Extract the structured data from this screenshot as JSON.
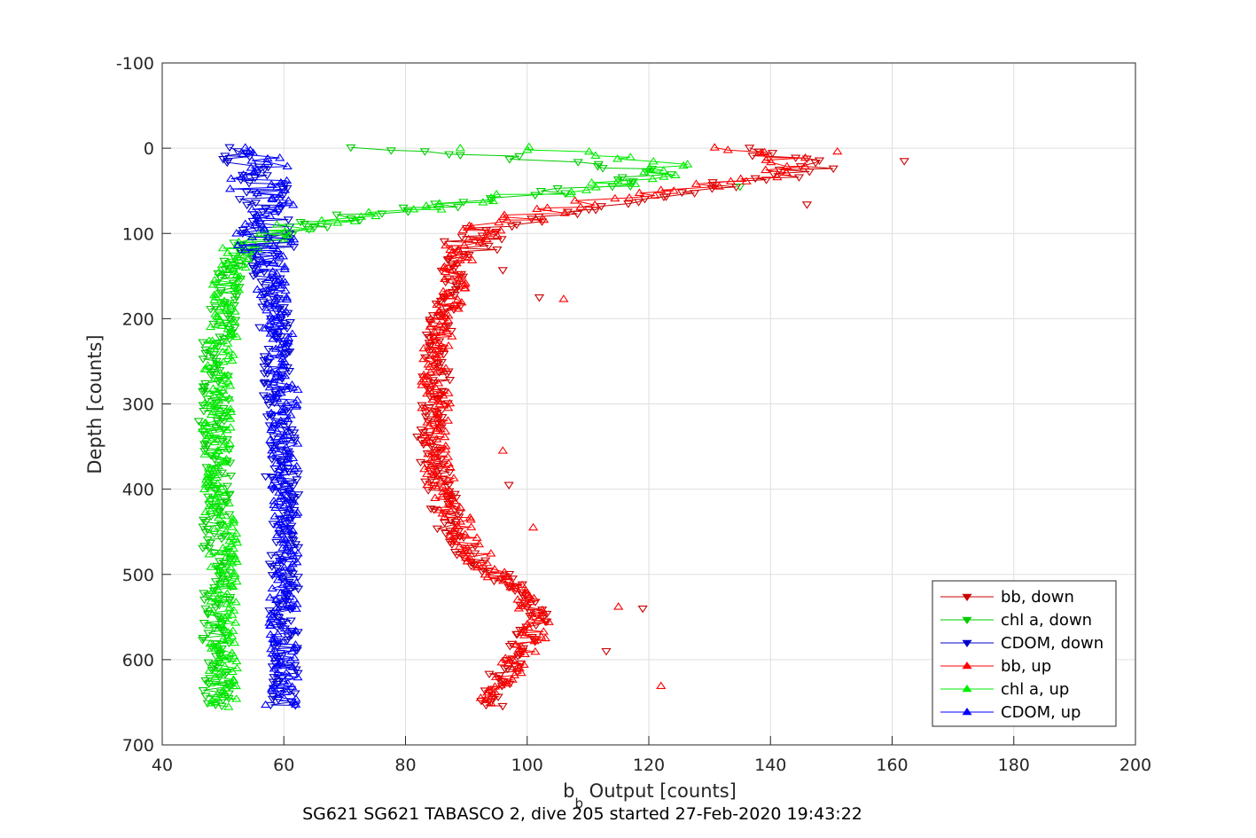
{
  "chart_data": {
    "type": "scatter",
    "title": "",
    "footer": "SG621 SG621 TABASCO 2, dive 205 started 27-Feb-2020 19:43:22",
    "xlabel_base": "b",
    "xlabel_sub": "b",
    "xlabel_rest": " Output [counts]",
    "ylabel": "Depth [counts]",
    "xlim": [
      40,
      200
    ],
    "ylim": [
      -100,
      700
    ],
    "y_reversed": true,
    "grid": true,
    "legend_position": "bottom-right",
    "xticks": [
      "40",
      "60",
      "80",
      "100",
      "120",
      "140",
      "160",
      "180",
      "200"
    ],
    "yticks": [
      "-100",
      "0",
      "100",
      "200",
      "300",
      "400",
      "500",
      "600",
      "700"
    ],
    "series": [
      {
        "name": "bb, down",
        "color": "#cc0000",
        "marker": "triangle-down",
        "profile": [
          [
            0,
            135
          ],
          [
            10,
            142
          ],
          [
            20,
            148
          ],
          [
            30,
            143
          ],
          [
            45,
            130
          ],
          [
            55,
            123
          ],
          [
            65,
            115
          ],
          [
            75,
            110
          ],
          [
            85,
            100
          ],
          [
            95,
            94
          ],
          [
            110,
            91
          ],
          [
            130,
            89
          ],
          [
            150,
            88
          ],
          [
            180,
            87
          ],
          [
            200,
            86
          ],
          [
            230,
            85
          ],
          [
            260,
            85
          ],
          [
            300,
            85
          ],
          [
            340,
            84
          ],
          [
            380,
            85
          ],
          [
            410,
            86
          ],
          [
            440,
            87
          ],
          [
            460,
            89
          ],
          [
            480,
            91
          ],
          [
            500,
            95
          ],
          [
            520,
            99
          ],
          [
            540,
            101
          ],
          [
            560,
            101
          ],
          [
            580,
            99
          ],
          [
            600,
            97
          ],
          [
            620,
            96
          ],
          [
            640,
            95
          ],
          [
            655,
            94
          ]
        ],
        "outliers": [
          [
            15,
            162
          ],
          [
            66,
            146
          ],
          [
            143,
            96
          ],
          [
            175,
            102
          ],
          [
            395,
            97
          ],
          [
            540,
            119
          ],
          [
            590,
            113
          ]
        ]
      },
      {
        "name": "chl a, down",
        "color": "#00cc00",
        "marker": "triangle-down",
        "profile": [
          [
            0,
            70
          ],
          [
            10,
            95
          ],
          [
            20,
            115
          ],
          [
            30,
            120
          ],
          [
            45,
            112
          ],
          [
            55,
            100
          ],
          [
            65,
            88
          ],
          [
            72,
            80
          ],
          [
            80,
            72
          ],
          [
            88,
            64
          ],
          [
            95,
            60
          ],
          [
            105,
            56
          ],
          [
            115,
            54
          ],
          [
            130,
            52
          ],
          [
            150,
            51
          ],
          [
            180,
            50
          ],
          [
            200,
            50
          ],
          [
            230,
            49
          ],
          [
            260,
            49
          ],
          [
            300,
            49
          ],
          [
            340,
            49
          ],
          [
            380,
            49
          ],
          [
            420,
            49
          ],
          [
            460,
            49
          ],
          [
            500,
            49
          ],
          [
            540,
            49
          ],
          [
            580,
            49
          ],
          [
            620,
            49
          ],
          [
            655,
            49
          ]
        ],
        "outliers": [
          [
            320,
            46
          ],
          [
            45,
            135
          ],
          [
            8,
            89
          ]
        ]
      },
      {
        "name": "CDOM, down",
        "color": "#0000cc",
        "marker": "triangle-down",
        "profile": [
          [
            0,
            55
          ],
          [
            20,
            55
          ],
          [
            50,
            56
          ],
          [
            80,
            56
          ],
          [
            110,
            57
          ],
          [
            140,
            57
          ],
          [
            170,
            58
          ],
          [
            200,
            59
          ],
          [
            240,
            59
          ],
          [
            280,
            59
          ],
          [
            320,
            59
          ],
          [
            360,
            60
          ],
          [
            400,
            60
          ],
          [
            440,
            60
          ],
          [
            480,
            60
          ],
          [
            520,
            60
          ],
          [
            560,
            60
          ],
          [
            600,
            60
          ],
          [
            640,
            60
          ],
          [
            655,
            60
          ]
        ],
        "outliers": [
          [
            210,
            56
          ],
          [
            385,
            57
          ]
        ]
      },
      {
        "name": "bb, up",
        "color": "#ff0000",
        "marker": "triangle-up",
        "profile": [
          [
            0,
            130
          ],
          [
            10,
            140
          ],
          [
            20,
            145
          ],
          [
            30,
            140
          ],
          [
            45,
            128
          ],
          [
            55,
            118
          ],
          [
            65,
            108
          ],
          [
            75,
            102
          ],
          [
            85,
            97
          ],
          [
            95,
            93
          ],
          [
            110,
            90
          ],
          [
            130,
            89
          ],
          [
            150,
            88
          ],
          [
            180,
            87
          ],
          [
            200,
            86
          ],
          [
            240,
            85
          ],
          [
            280,
            85
          ],
          [
            320,
            85
          ],
          [
            360,
            85
          ],
          [
            400,
            86
          ],
          [
            430,
            88
          ],
          [
            460,
            90
          ],
          [
            490,
            93
          ],
          [
            510,
            97
          ],
          [
            530,
            100
          ],
          [
            550,
            102
          ],
          [
            570,
            101
          ],
          [
            590,
            99
          ],
          [
            610,
            97
          ],
          [
            630,
            96
          ],
          [
            650,
            94
          ]
        ],
        "outliers": [
          [
            4,
            151
          ],
          [
            177,
            106
          ],
          [
            355,
            96
          ],
          [
            445,
            101
          ],
          [
            538,
            115
          ],
          [
            631,
            122
          ],
          [
            575,
            103
          ]
        ]
      },
      {
        "name": "chl a, up",
        "color": "#00ee00",
        "marker": "triangle-up",
        "profile": [
          [
            0,
            100
          ],
          [
            10,
            118
          ],
          [
            20,
            125
          ],
          [
            30,
            122
          ],
          [
            45,
            112
          ],
          [
            55,
            100
          ],
          [
            65,
            90
          ],
          [
            72,
            82
          ],
          [
            80,
            74
          ],
          [
            88,
            66
          ],
          [
            95,
            61
          ],
          [
            105,
            57
          ],
          [
            115,
            54
          ],
          [
            130,
            52
          ],
          [
            150,
            51
          ],
          [
            180,
            50
          ],
          [
            220,
            50
          ],
          [
            260,
            49
          ],
          [
            300,
            49
          ],
          [
            340,
            49
          ],
          [
            380,
            49
          ],
          [
            420,
            49
          ],
          [
            460,
            50
          ],
          [
            500,
            50
          ],
          [
            540,
            50
          ],
          [
            580,
            50
          ],
          [
            620,
            50
          ],
          [
            655,
            50
          ]
        ],
        "outliers": [
          [
            0,
            89
          ],
          [
            330,
            47
          ]
        ]
      },
      {
        "name": "CDOM, up",
        "color": "#0000ff",
        "marker": "triangle-up",
        "profile": [
          [
            0,
            55
          ],
          [
            20,
            56
          ],
          [
            50,
            56
          ],
          [
            80,
            57
          ],
          [
            110,
            57
          ],
          [
            140,
            58
          ],
          [
            170,
            58
          ],
          [
            200,
            59
          ],
          [
            240,
            59
          ],
          [
            280,
            60
          ],
          [
            320,
            60
          ],
          [
            360,
            60
          ],
          [
            400,
            60
          ],
          [
            440,
            60
          ],
          [
            480,
            60
          ],
          [
            520,
            60
          ],
          [
            560,
            60
          ],
          [
            600,
            60
          ],
          [
            640,
            60
          ],
          [
            652,
            60
          ]
        ],
        "outliers": [
          [
            653,
            57
          ]
        ]
      }
    ]
  }
}
